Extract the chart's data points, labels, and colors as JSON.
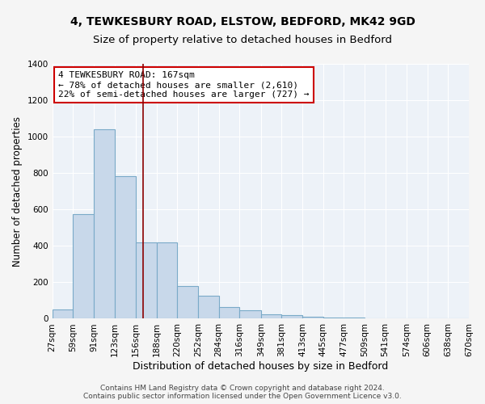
{
  "title_line1": "4, TEWKESBURY ROAD, ELSTOW, BEDFORD, MK42 9GD",
  "title_line2": "Size of property relative to detached houses in Bedford",
  "xlabel": "Distribution of detached houses by size in Bedford",
  "ylabel": "Number of detached properties",
  "annotation_line1": "4 TEWKESBURY ROAD: 167sqm",
  "annotation_line2": "← 78% of detached houses are smaller (2,610)",
  "annotation_line3": "22% of semi-detached houses are larger (727) →",
  "footer_line1": "Contains HM Land Registry data © Crown copyright and database right 2024.",
  "footer_line2": "Contains public sector information licensed under the Open Government Licence v3.0.",
  "bar_color": "#c8d8ea",
  "bar_edge_color": "#7aaac8",
  "background_color": "#edf2f8",
  "grid_color": "#ffffff",
  "red_line_x": 167,
  "bin_edges": [
    27,
    59,
    91,
    123,
    156,
    188,
    220,
    252,
    284,
    316,
    349,
    381,
    413,
    445,
    477,
    509,
    541,
    574,
    606,
    638,
    670
  ],
  "bin_heights": [
    50,
    575,
    1040,
    785,
    420,
    420,
    180,
    125,
    65,
    45,
    25,
    20,
    12,
    8,
    5,
    3,
    2,
    1,
    1,
    1
  ],
  "ylim": [
    0,
    1400
  ],
  "yticks": [
    0,
    200,
    400,
    600,
    800,
    1000,
    1200,
    1400
  ],
  "annotation_box_color": "#ffffff",
  "annotation_box_edge": "#cc0000",
  "title_fontsize": 10,
  "subtitle_fontsize": 9.5,
  "ylabel_fontsize": 8.5,
  "xlabel_fontsize": 9,
  "tick_fontsize": 7.5,
  "annotation_fontsize": 8,
  "footer_fontsize": 6.5
}
